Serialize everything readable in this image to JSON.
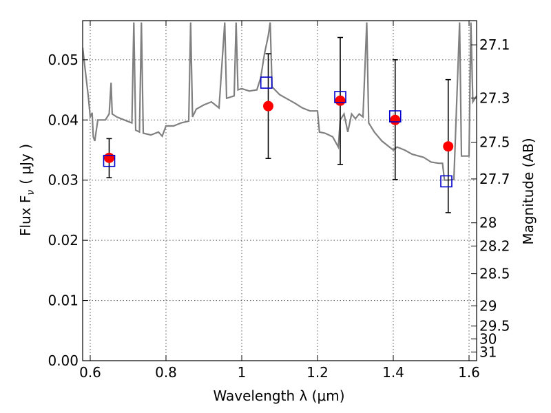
{
  "chart_data": {
    "type": "scatter",
    "xlabel": "Wavelength  λ (μm)",
    "ylabel": "Flux  F",
    "ylabel_subscript": "ν",
    "ylabel_unit": "( μJy )",
    "ylabel_right": "Magnitude (AB)",
    "xlim": [
      0.58,
      1.62
    ],
    "ylim": [
      0.0,
      0.0565
    ],
    "grid": true,
    "x_ticks": [
      {
        "value": 0.6,
        "label": "0.6"
      },
      {
        "value": 0.8,
        "label": "0.8"
      },
      {
        "value": 1.0,
        "label": "1"
      },
      {
        "value": 1.2,
        "label": "1.2"
      },
      {
        "value": 1.4,
        "label": "1.4"
      },
      {
        "value": 1.6,
        "label": "1.6"
      }
    ],
    "y_ticks": [
      {
        "value": 0.0,
        "label": "0.00"
      },
      {
        "value": 0.01,
        "label": "0.01"
      },
      {
        "value": 0.02,
        "label": "0.02"
      },
      {
        "value": 0.03,
        "label": "0.03"
      },
      {
        "value": 0.04,
        "label": "0.04"
      },
      {
        "value": 0.05,
        "label": "0.05"
      }
    ],
    "right_ticks": [
      {
        "mag": 27.1,
        "label": "27.1"
      },
      {
        "mag": 27.3,
        "label": "27.3"
      },
      {
        "mag": 27.5,
        "label": "27.5"
      },
      {
        "mag": 27.7,
        "label": "27.7"
      },
      {
        "mag": 28.0,
        "label": "28"
      },
      {
        "mag": 28.2,
        "label": "28.2"
      },
      {
        "mag": 28.5,
        "label": "28.5"
      },
      {
        "mag": 29.0,
        "label": "29"
      },
      {
        "mag": 29.5,
        "label": "29.5"
      },
      {
        "mag": 30.0,
        "label": "30"
      },
      {
        "mag": 31.0,
        "label": "31"
      }
    ],
    "series": [
      {
        "kind": "observed",
        "color": "#ff0000",
        "marker": "circle",
        "points": [
          {
            "x": 0.65,
            "y": 0.0337,
            "err_low": 0.0304,
            "err_high": 0.0369
          },
          {
            "x": 1.07,
            "y": 0.0423,
            "err_low": 0.0336,
            "err_high": 0.051
          },
          {
            "x": 1.26,
            "y": 0.0432,
            "err_low": 0.0326,
            "err_high": 0.0537
          },
          {
            "x": 1.405,
            "y": 0.04,
            "err_low": 0.0301,
            "err_high": 0.05
          },
          {
            "x": 1.545,
            "y": 0.0356,
            "err_low": 0.0246,
            "err_high": 0.0467
          }
        ]
      },
      {
        "kind": "model",
        "color": "#0000cc",
        "marker": "square",
        "points": [
          {
            "x": 0.65,
            "y": 0.0332
          },
          {
            "x": 1.065,
            "y": 0.0462
          },
          {
            "x": 1.26,
            "y": 0.0438
          },
          {
            "x": 1.405,
            "y": 0.0406
          },
          {
            "x": 1.54,
            "y": 0.0298
          }
        ]
      },
      {
        "kind": "template",
        "color": "#808080",
        "line": [
          [
            0.58,
            0.052
          ],
          [
            0.595,
            0.0438
          ],
          [
            0.6,
            0.0405
          ],
          [
            0.605,
            0.0412
          ],
          [
            0.608,
            0.0372
          ],
          [
            0.612,
            0.0365
          ],
          [
            0.62,
            0.04
          ],
          [
            0.64,
            0.04
          ],
          [
            0.65,
            0.041
          ],
          [
            0.655,
            0.0462
          ],
          [
            0.658,
            0.041
          ],
          [
            0.67,
            0.0405
          ],
          [
            0.69,
            0.04
          ],
          [
            0.71,
            0.0395
          ],
          [
            0.715,
            0.0562
          ],
          [
            0.72,
            0.0383
          ],
          [
            0.73,
            0.038
          ],
          [
            0.735,
            0.0562
          ],
          [
            0.74,
            0.0378
          ],
          [
            0.76,
            0.0375
          ],
          [
            0.78,
            0.038
          ],
          [
            0.79,
            0.0373
          ],
          [
            0.8,
            0.039
          ],
          [
            0.82,
            0.039
          ],
          [
            0.84,
            0.0395
          ],
          [
            0.86,
            0.0398
          ],
          [
            0.865,
            0.0562
          ],
          [
            0.87,
            0.0405
          ],
          [
            0.88,
            0.0418
          ],
          [
            0.9,
            0.0425
          ],
          [
            0.92,
            0.043
          ],
          [
            0.94,
            0.042
          ],
          [
            0.955,
            0.0562
          ],
          [
            0.96,
            0.0436
          ],
          [
            0.98,
            0.044
          ],
          [
            0.985,
            0.0562
          ],
          [
            0.99,
            0.045
          ],
          [
            1.0,
            0.0452
          ],
          [
            1.02,
            0.0448
          ],
          [
            1.04,
            0.045
          ],
          [
            1.05,
            0.047
          ],
          [
            1.06,
            0.051
          ],
          [
            1.07,
            0.054
          ],
          [
            1.075,
            0.0562
          ],
          [
            1.08,
            0.0455
          ],
          [
            1.1,
            0.0442
          ],
          [
            1.12,
            0.0435
          ],
          [
            1.14,
            0.0428
          ],
          [
            1.16,
            0.042
          ],
          [
            1.18,
            0.0415
          ],
          [
            1.2,
            0.0415
          ],
          [
            1.205,
            0.038
          ],
          [
            1.22,
            0.0378
          ],
          [
            1.24,
            0.0372
          ],
          [
            1.255,
            0.0355
          ],
          [
            1.26,
            0.04
          ],
          [
            1.27,
            0.041
          ],
          [
            1.28,
            0.038
          ],
          [
            1.29,
            0.041
          ],
          [
            1.3,
            0.0402
          ],
          [
            1.31,
            0.041
          ],
          [
            1.32,
            0.0405
          ],
          [
            1.33,
            0.0562
          ],
          [
            1.335,
            0.0395
          ],
          [
            1.35,
            0.038
          ],
          [
            1.37,
            0.0365
          ],
          [
            1.39,
            0.0355
          ],
          [
            1.4,
            0.035
          ],
          [
            1.41,
            0.0355
          ],
          [
            1.43,
            0.035
          ],
          [
            1.45,
            0.0343
          ],
          [
            1.48,
            0.0338
          ],
          [
            1.5,
            0.033
          ],
          [
            1.52,
            0.0328
          ],
          [
            1.53,
            0.0328
          ],
          [
            1.535,
            0.03
          ],
          [
            1.545,
            0.03
          ],
          [
            1.56,
            0.0301
          ],
          [
            1.575,
            0.0562
          ],
          [
            1.58,
            0.034
          ],
          [
            1.6,
            0.034
          ],
          [
            1.605,
            0.0562
          ],
          [
            1.61,
            0.043
          ],
          [
            1.62,
            0.044
          ]
        ]
      }
    ]
  }
}
